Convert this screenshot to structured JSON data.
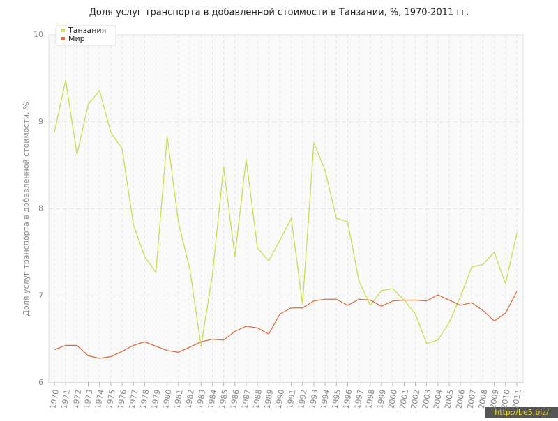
{
  "chart_data": {
    "type": "line",
    "title": "Доля услуг транспорта в добавленной стоимости в Танзании, %, 1970-2011 гг.",
    "y_label": "Доля услуг транспорта в добавленной стоимости, %",
    "watermark": "http://be5.biz/",
    "categories": [
      "1970",
      "1971",
      "1972",
      "1973",
      "1974",
      "1975",
      "1976",
      "1977",
      "1978",
      "1979",
      "1980",
      "1981",
      "1982",
      "1983",
      "1984",
      "1985",
      "1986",
      "1987",
      "1988",
      "1989",
      "1990",
      "1991",
      "1992",
      "1993",
      "1994",
      "1995",
      "1996",
      "1997",
      "1998",
      "1999",
      "2000",
      "2001",
      "2002",
      "2003",
      "2004",
      "2005",
      "2006",
      "2007",
      "2008",
      "2009",
      "2010",
      "2011"
    ],
    "series": [
      {
        "name": "Танзания",
        "color": "#c6df52",
        "values": [
          8.88,
          9.48,
          8.62,
          9.2,
          9.36,
          8.88,
          8.69,
          7.82,
          7.45,
          7.27,
          8.83,
          7.84,
          7.31,
          6.42,
          7.23,
          8.48,
          7.45,
          8.57,
          7.55,
          7.4,
          7.64,
          7.89,
          6.9,
          8.76,
          8.44,
          7.89,
          7.85,
          7.17,
          6.89,
          7.06,
          7.08,
          6.95,
          6.79,
          6.45,
          6.49,
          6.69,
          6.99,
          7.33,
          7.36,
          7.5,
          7.14,
          7.72
        ]
      },
      {
        "name": "Мир",
        "color": "#e06d3c",
        "values": [
          6.38,
          6.43,
          6.43,
          6.31,
          6.28,
          6.3,
          6.36,
          6.43,
          6.47,
          6.42,
          6.37,
          6.35,
          6.41,
          6.47,
          6.5,
          6.49,
          6.59,
          6.65,
          6.63,
          6.56,
          6.79,
          6.86,
          6.86,
          6.94,
          6.96,
          6.96,
          6.89,
          6.96,
          6.95,
          6.88,
          6.94,
          6.95,
          6.95,
          6.94,
          7.01,
          6.95,
          6.89,
          6.92,
          6.83,
          6.71,
          6.8,
          7.05
        ]
      }
    ],
    "ylim": [
      6,
      10
    ],
    "yticks": [
      6,
      7,
      8,
      9,
      10
    ],
    "grid": true,
    "legend": "top-left"
  }
}
